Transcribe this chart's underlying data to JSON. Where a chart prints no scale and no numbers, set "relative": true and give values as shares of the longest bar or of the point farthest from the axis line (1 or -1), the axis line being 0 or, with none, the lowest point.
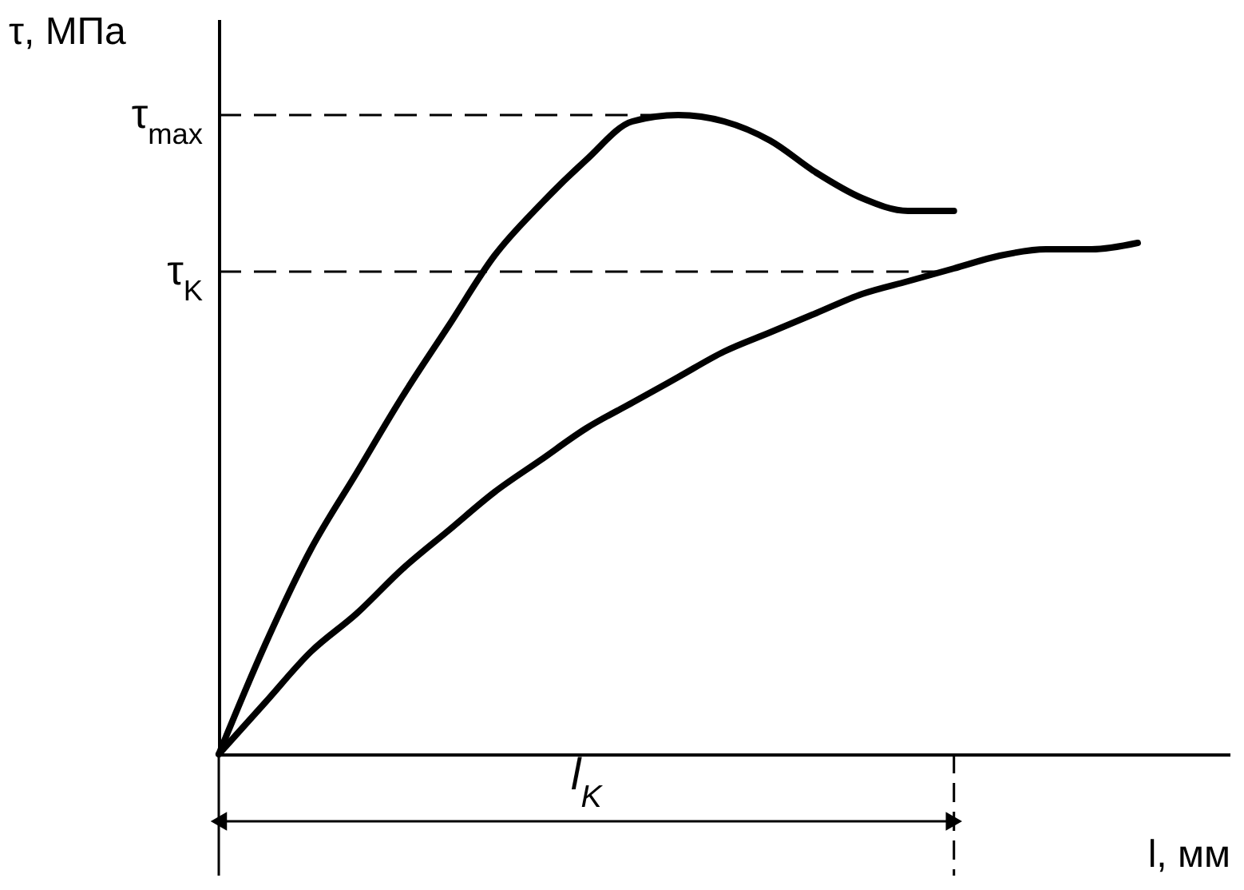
{
  "chart_data": {
    "type": "line",
    "relative": true,
    "xlabel": "l, мм",
    "ylabel": "τ, МПа",
    "categories": [
      null,
      null,
      null,
      null,
      null,
      null,
      null,
      null,
      null,
      null,
      null,
      null,
      null,
      null,
      null,
      null,
      null,
      null,
      null,
      null,
      null
    ],
    "series": [
      {
        "color": "#000000",
        "values": [
          0,
          0.17,
          0.32,
          0.44,
          0.56,
          0.67,
          0.78,
          0.86,
          0.93,
          0.99,
          1,
          0.99,
          0.96,
          0.91,
          0.87,
          0.85,
          0.85,
          null,
          null,
          null,
          null
        ]
      },
      {
        "color": "#000000",
        "values": [
          0,
          0.08,
          0.16,
          0.22,
          0.29,
          0.35,
          0.41,
          0.46,
          0.51,
          0.55,
          0.59,
          0.63,
          0.66,
          0.69,
          0.72,
          0.74,
          0.76,
          0.78,
          0.79,
          0.79,
          0.8
        ]
      }
    ],
    "ref_lines": [
      {
        "axis": "y",
        "value": 1,
        "label": "τ$_{max}$",
        "line_style": "dashed"
      },
      {
        "axis": "y",
        "value": 0.755,
        "label": "τ$_{K}$",
        "line_style": "dashed"
      }
    ],
    "annotations": [
      "l$_{K}$"
    ]
  }
}
